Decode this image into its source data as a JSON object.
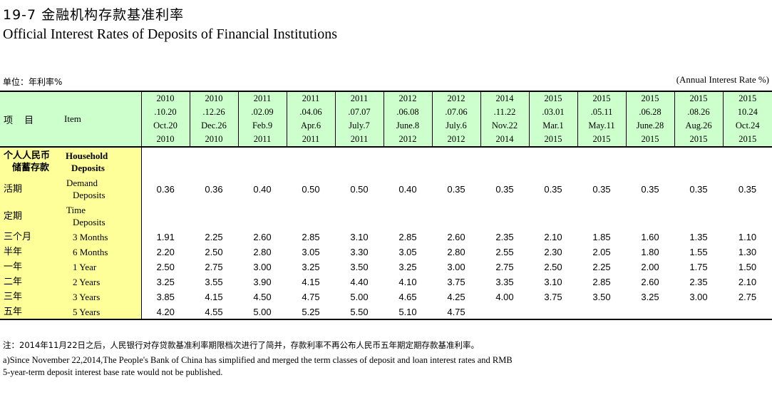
{
  "title_cn": "19-7  金融机构存款基准利率",
  "title_en": "Official Interest Rates of Deposits of Financial Institutions",
  "unit_cn": "单位：年利率%",
  "unit_en": "(Annual Interest Rate %)",
  "header": {
    "item_cn": "项 目",
    "item_en": "Item",
    "dates": [
      {
        "l1": "2010",
        "l2": ".10.20",
        "l3": "Oct.20",
        "l4": "2010"
      },
      {
        "l1": "2010",
        "l2": ".12.26",
        "l3": "Dec.26",
        "l4": "2010"
      },
      {
        "l1": "2011",
        "l2": ".02.09",
        "l3": "Feb.9",
        "l4": "2011"
      },
      {
        "l1": "2011",
        "l2": ".04.06",
        "l3": "Apr.6",
        "l4": "2011"
      },
      {
        "l1": "2011",
        "l2": ".07.07",
        "l3": "July.7",
        "l4": "2011"
      },
      {
        "l1": "2012",
        "l2": ".06.08",
        "l3": "June.8",
        "l4": "2012"
      },
      {
        "l1": "2012",
        "l2": ".07.06",
        "l3": "July.6",
        "l4": "2012"
      },
      {
        "l1": "2014",
        "l2": ".11.22",
        "l3": "Nov.22",
        "l4": "2014"
      },
      {
        "l1": "2015",
        "l2": ".03.01",
        "l3": "Mar.1",
        "l4": "2015"
      },
      {
        "l1": "2015",
        "l2": ".05.11",
        "l3": "May.11",
        "l4": "2015"
      },
      {
        "l1": "2015",
        "l2": ".06.28",
        "l3": "June.28",
        "l4": "2015"
      },
      {
        "l1": "2015",
        "l2": ".08.26",
        "l3": "Aug.26",
        "l4": "2015"
      },
      {
        "l1": "2015",
        "l2": "10.24",
        "l3": "Oct.24",
        "l4": "2015"
      }
    ]
  },
  "rows": {
    "household": {
      "cn1": "个人人民币",
      "cn2": "储蓄存款",
      "en1": "Household",
      "en2": "Deposits"
    },
    "demand": {
      "cn": "活期",
      "en1": "Demand",
      "en2": "Deposits",
      "values": [
        "0.36",
        "0.36",
        "0.40",
        "0.50",
        "0.50",
        "0.40",
        "0.35",
        "0.35",
        "0.35",
        "0.35",
        "0.35",
        "0.35",
        "0.35"
      ]
    },
    "time": {
      "cn": "定期",
      "en1": "Time",
      "en2": "Deposits"
    },
    "terms": [
      {
        "cn": "三个月",
        "en": "3 Months",
        "values": [
          "1.91",
          "2.25",
          "2.60",
          "2.85",
          "3.10",
          "2.85",
          "2.60",
          "2.35",
          "2.10",
          "1.85",
          "1.60",
          "1.35",
          "1.10"
        ]
      },
      {
        "cn": "半年",
        "en": "6 Months",
        "values": [
          "2.20",
          "2.50",
          "2.80",
          "3.05",
          "3.30",
          "3.05",
          "2.80",
          "2.55",
          "2.30",
          "2.05",
          "1.80",
          "1.55",
          "1.30"
        ]
      },
      {
        "cn": "一年",
        "en": "1 Year",
        "values": [
          "2.50",
          "2.75",
          "3.00",
          "3.25",
          "3.50",
          "3.25",
          "3.00",
          "2.75",
          "2.50",
          "2.25",
          "2.00",
          "1.75",
          "1.50"
        ]
      },
      {
        "cn": "二年",
        "en": "2 Years",
        "values": [
          "3.25",
          "3.55",
          "3.90",
          "4.15",
          "4.40",
          "4.10",
          "3.75",
          "3.35",
          "3.10",
          "2.85",
          "2.60",
          "2.35",
          "2.10"
        ]
      },
      {
        "cn": "三年",
        "en": "3 Years",
        "values": [
          "3.85",
          "4.15",
          "4.50",
          "4.75",
          "5.00",
          "4.65",
          "4.25",
          "4.00",
          "3.75",
          "3.50",
          "3.25",
          "3.00",
          "2.75"
        ]
      },
      {
        "cn": "五年",
        "en": "5 Years",
        "values": [
          "4.20",
          "4.55",
          "5.00",
          "5.25",
          "5.50",
          "5.10",
          "4.75",
          "",
          "",
          "",
          "",
          "",
          ""
        ]
      }
    ]
  },
  "footnotes": {
    "cn": "注：2014年11月22日之后，人民银行对存贷款基准利率期限档次进行了简并，存款利率不再公布人民币五年期定期存款基准利率。",
    "en1": "a)Since November 22,2014,The People's Bank of China has simplified and merged the term classes of deposit and loan interest rates and RMB",
    "en2": " 5-year-term deposit interest base rate would not be published."
  }
}
